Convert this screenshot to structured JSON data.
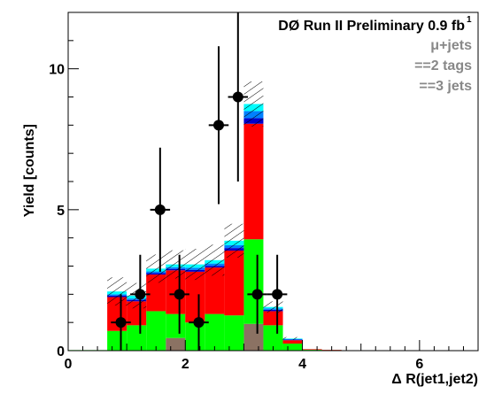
{
  "chart_data": {
    "type": "bar",
    "stacked": true,
    "title": "DØ Run II Preliminary 0.9 fb",
    "title_superscript": "1",
    "subtitle_lines": [
      "μ+jets",
      "==2 tags",
      "==3 jets"
    ],
    "xlabel": "Δ R(jet1,jet2)",
    "ylabel": "Yield [counts]",
    "xlim": [
      0,
      7
    ],
    "ylim": [
      0,
      12
    ],
    "x_ticks": [
      "0",
      "2",
      "4",
      "6"
    ],
    "y_ticks": [
      "0",
      "5",
      "10"
    ],
    "grid": false,
    "bins": [
      [
        0.0,
        0.333
      ],
      [
        0.333,
        0.667
      ],
      [
        0.667,
        1.0
      ],
      [
        1.0,
        1.333
      ],
      [
        1.333,
        1.667
      ],
      [
        1.667,
        2.0
      ],
      [
        2.0,
        2.333
      ],
      [
        2.333,
        2.667
      ],
      [
        2.667,
        3.0
      ],
      [
        3.0,
        3.333
      ],
      [
        3.333,
        3.667
      ],
      [
        3.667,
        4.0
      ],
      [
        4.0,
        4.333
      ],
      [
        4.333,
        4.667
      ],
      [
        4.667,
        5.0
      ],
      [
        5.0,
        5.333
      ],
      [
        5.333,
        5.667
      ],
      [
        5.667,
        6.0
      ],
      [
        6.0,
        6.333
      ],
      [
        6.333,
        6.667
      ],
      [
        6.667,
        7.0
      ]
    ],
    "series": [
      {
        "color": "#8b7263",
        "values": [
          0,
          0,
          0,
          0,
          0,
          0.45,
          0,
          0,
          0,
          0.95,
          0,
          0,
          0,
          0,
          0,
          0,
          0,
          0,
          0,
          0,
          0
        ]
      },
      {
        "color": "#00ff00",
        "values": [
          0.02,
          0.02,
          0.7,
          0.9,
          1.4,
          0.85,
          1.0,
          1.3,
          1.25,
          3.0,
          0.9,
          0.25,
          0.03,
          0.02,
          0.01,
          0,
          0,
          0,
          0,
          0,
          0
        ]
      },
      {
        "color": "#ff0000",
        "values": [
          0,
          0,
          1.2,
          0.85,
          1.3,
          1.55,
          1.8,
          1.65,
          2.3,
          4.1,
          0.5,
          0.12,
          0.02,
          0.01,
          0,
          0,
          0,
          0,
          0,
          0,
          0
        ]
      },
      {
        "color": "#0000cc",
        "values": [
          0,
          0,
          0.05,
          0.05,
          0.05,
          0.05,
          0.06,
          0.06,
          0.09,
          0.2,
          0.05,
          0.02,
          0,
          0,
          0,
          0,
          0,
          0,
          0,
          0,
          0
        ]
      },
      {
        "color": "#0080ff",
        "values": [
          0,
          0,
          0.05,
          0.05,
          0.06,
          0.06,
          0.08,
          0.08,
          0.1,
          0.25,
          0.05,
          0.02,
          0,
          0,
          0,
          0,
          0,
          0,
          0,
          0,
          0
        ]
      },
      {
        "color": "#00ffff",
        "values": [
          0,
          0,
          0.1,
          0.1,
          0.1,
          0.1,
          0.12,
          0.12,
          0.16,
          0.25,
          0.05,
          0.02,
          0,
          0,
          0,
          0,
          0,
          0,
          0,
          0,
          0
        ]
      }
    ],
    "uncertainty_band": {
      "style": "hatched",
      "half_width": [
        0,
        0,
        0.5,
        0.45,
        0.5,
        0.5,
        0.55,
        0.55,
        0.6,
        0.8,
        0.2,
        0.05,
        0,
        0,
        0,
        0,
        0,
        0,
        0,
        0,
        0
      ]
    },
    "data_points": [
      {
        "x": 0.9,
        "y": 1,
        "xerr": 0.17,
        "yerr_low": 1.0,
        "yerr_high": 1.0
      },
      {
        "x": 1.23,
        "y": 2,
        "xerr": 0.17,
        "yerr_low": 1.4,
        "yerr_high": 1.4
      },
      {
        "x": 1.57,
        "y": 5,
        "xerr": 0.17,
        "yerr_low": 2.2,
        "yerr_high": 2.2
      },
      {
        "x": 1.9,
        "y": 2,
        "xerr": 0.17,
        "yerr_low": 1.4,
        "yerr_high": 1.4
      },
      {
        "x": 2.23,
        "y": 1,
        "xerr": 0.17,
        "yerr_low": 1.0,
        "yerr_high": 1.0
      },
      {
        "x": 2.57,
        "y": 8,
        "xerr": 0.17,
        "yerr_low": 2.8,
        "yerr_high": 2.8
      },
      {
        "x": 2.9,
        "y": 9,
        "xerr": 0.17,
        "yerr_low": 3.0,
        "yerr_high": 3.0
      },
      {
        "x": 3.23,
        "y": 2,
        "xerr": 0.17,
        "yerr_low": 1.4,
        "yerr_high": 1.4
      },
      {
        "x": 3.57,
        "y": 2,
        "xerr": 0.17,
        "yerr_low": 1.4,
        "yerr_high": 1.4
      }
    ]
  }
}
